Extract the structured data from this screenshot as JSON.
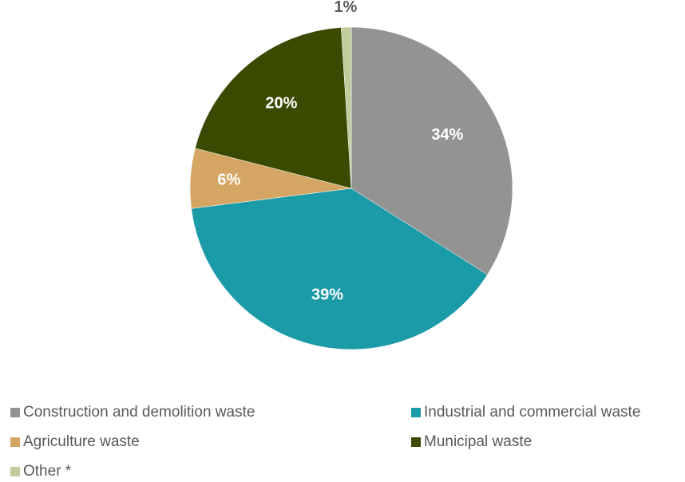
{
  "chart_data": {
    "type": "pie",
    "title": "",
    "start": "top-clockwise",
    "slices": [
      {
        "label": "Construction and demolition waste",
        "value": 34,
        "display": "34%",
        "color": "#939393",
        "label_color": "#ffffff"
      },
      {
        "label": "Industrial and commercial waste",
        "value": 39,
        "display": "39%",
        "color": "#1b9aa8",
        "label_color": "#ffffff"
      },
      {
        "label": "Agriculture waste",
        "value": 6,
        "display": "6%",
        "color": "#d5a564",
        "label_color": "#ffffff"
      },
      {
        "label": "Municipal waste",
        "value": 20,
        "display": "20%",
        "color": "#3a4a00",
        "label_color": "#ffffff"
      },
      {
        "label": "Other *",
        "value": 1,
        "display": "1%",
        "color": "#c1cc9c",
        "label_color": "#595959"
      }
    ],
    "legend": {
      "placement": "bottom",
      "columns": 2
    }
  }
}
